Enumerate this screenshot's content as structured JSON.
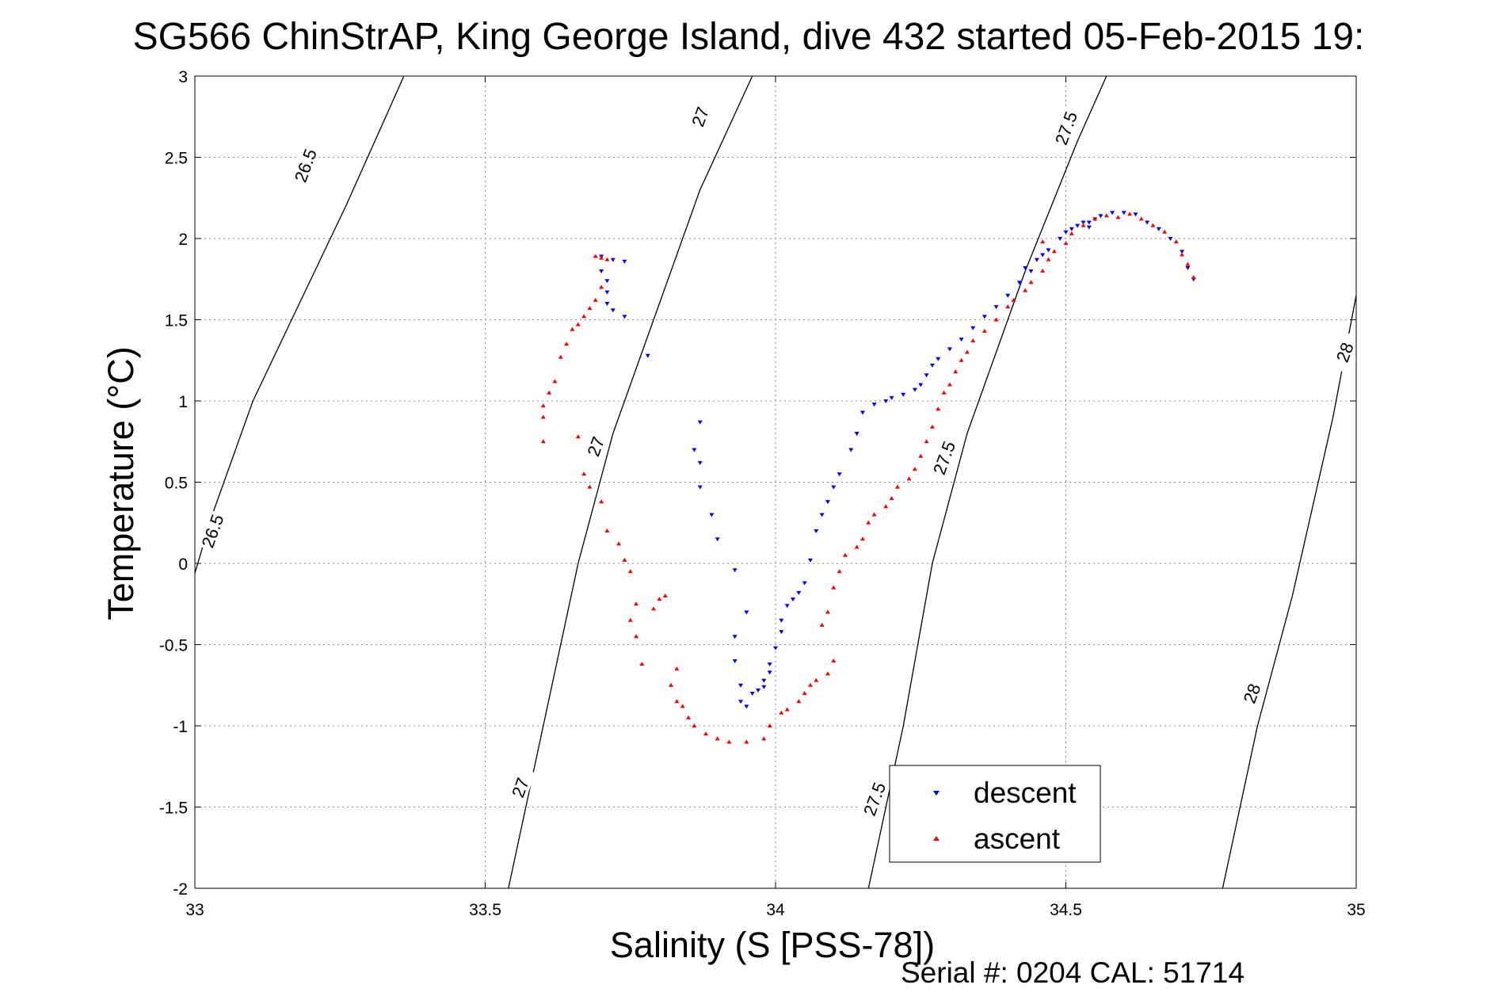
{
  "chart_data": {
    "type": "scatter",
    "title": "SG566 ChinStrAP, King George Island, dive 432 started 05-Feb-2015 19:",
    "xlabel": "Salinity (S [PSS-78])",
    "ylabel": "Temperature (°C)",
    "xlim": [
      33,
      35
    ],
    "ylim": [
      -2,
      3
    ],
    "x_ticks": [
      "33",
      "33.5",
      "34",
      "34.5",
      "35"
    ],
    "y_ticks": [
      "-2",
      "-1.5",
      "-1",
      "-0.5",
      "0",
      "0.5",
      "1",
      "1.5",
      "2",
      "2.5",
      "3"
    ],
    "grid": true,
    "legend": {
      "placement": "bottom-right"
    },
    "density_contours": [
      {
        "label": "26.5",
        "points": [
          [
            32.99,
            -0.18
          ],
          [
            33.03,
            0.3
          ],
          [
            33.1,
            1.0
          ],
          [
            33.18,
            1.6
          ],
          [
            33.26,
            2.2
          ],
          [
            33.36,
            3.0
          ]
        ]
      },
      {
        "label": "27",
        "points": [
          [
            33.54,
            -2.0
          ],
          [
            33.6,
            -1.0
          ],
          [
            33.66,
            0.0
          ],
          [
            33.72,
            0.8
          ],
          [
            33.8,
            1.6
          ],
          [
            33.87,
            2.3
          ],
          [
            33.96,
            3.0
          ]
        ]
      },
      {
        "label": "27.5",
        "points": [
          [
            34.16,
            -2.0
          ],
          [
            34.22,
            -1.0
          ],
          [
            34.27,
            0.0
          ],
          [
            34.33,
            0.8
          ],
          [
            34.43,
            1.8
          ],
          [
            34.52,
            2.6
          ],
          [
            34.57,
            3.0
          ]
        ]
      },
      {
        "label": "28",
        "points": [
          [
            34.77,
            -2.0
          ],
          [
            34.83,
            -1.0
          ],
          [
            34.89,
            -0.2
          ],
          [
            34.96,
            0.9
          ],
          [
            35.0,
            1.65
          ]
        ]
      }
    ],
    "contour_label_marks": [
      {
        "text": "26.5",
        "x": 33.19,
        "y": 2.45
      },
      {
        "text": "26.5",
        "x": 33.03,
        "y": 0.2
      },
      {
        "text": "27",
        "x": 33.87,
        "y": 2.75
      },
      {
        "text": "27",
        "x": 33.69,
        "y": 0.72
      },
      {
        "text": "27",
        "x": 33.56,
        "y": -1.38
      },
      {
        "text": "27.5",
        "x": 34.5,
        "y": 2.68
      },
      {
        "text": "27.5",
        "x": 34.29,
        "y": 0.65
      },
      {
        "text": "27.5",
        "x": 34.17,
        "y": -1.45
      },
      {
        "text": "28",
        "x": 34.98,
        "y": 1.3
      },
      {
        "text": "28",
        "x": 34.82,
        "y": -0.8
      }
    ],
    "series": [
      {
        "name": "descent",
        "color": "#0000ff",
        "marker": "triangle-down",
        "points": [
          [
            33.7,
            1.89
          ],
          [
            33.72,
            1.87
          ],
          [
            33.74,
            1.86
          ],
          [
            33.7,
            1.8
          ],
          [
            33.71,
            1.74
          ],
          [
            33.71,
            1.67
          ],
          [
            33.71,
            1.6
          ],
          [
            33.72,
            1.56
          ],
          [
            33.74,
            1.52
          ],
          [
            33.78,
            1.28
          ],
          [
            33.87,
            0.87
          ],
          [
            33.86,
            0.7
          ],
          [
            33.87,
            0.62
          ],
          [
            33.87,
            0.47
          ],
          [
            33.89,
            0.3
          ],
          [
            33.9,
            0.15
          ],
          [
            33.93,
            -0.04
          ],
          [
            33.95,
            -0.3
          ],
          [
            33.93,
            -0.45
          ],
          [
            33.93,
            -0.6
          ],
          [
            33.94,
            -0.75
          ],
          [
            33.94,
            -0.85
          ],
          [
            33.95,
            -0.88
          ],
          [
            33.96,
            -0.8
          ],
          [
            33.97,
            -0.78
          ],
          [
            33.98,
            -0.76
          ],
          [
            33.98,
            -0.72
          ],
          [
            33.99,
            -0.67
          ],
          [
            33.99,
            -0.62
          ],
          [
            34,
            -0.52
          ],
          [
            34.01,
            -0.42
          ],
          [
            34.01,
            -0.35
          ],
          [
            34.02,
            -0.26
          ],
          [
            34.03,
            -0.22
          ],
          [
            34.04,
            -0.18
          ],
          [
            34.05,
            -0.12
          ],
          [
            34.06,
            0.02
          ],
          [
            34.07,
            0.2
          ],
          [
            34.08,
            0.3
          ],
          [
            34.09,
            0.38
          ],
          [
            34.1,
            0.47
          ],
          [
            34.11,
            0.55
          ],
          [
            34.13,
            0.7
          ],
          [
            34.14,
            0.8
          ],
          [
            34.15,
            0.93
          ],
          [
            34.17,
            0.98
          ],
          [
            34.19,
            1.0
          ],
          [
            34.2,
            1.02
          ],
          [
            34.22,
            1.04
          ],
          [
            34.24,
            1.07
          ],
          [
            34.25,
            1.1
          ],
          [
            34.26,
            1.16
          ],
          [
            34.27,
            1.22
          ],
          [
            34.28,
            1.26
          ],
          [
            34.3,
            1.32
          ],
          [
            34.32,
            1.38
          ],
          [
            34.34,
            1.45
          ],
          [
            34.36,
            1.52
          ],
          [
            34.38,
            1.58
          ],
          [
            34.4,
            1.65
          ],
          [
            34.42,
            1.73
          ],
          [
            34.44,
            1.8
          ],
          [
            34.45,
            1.87
          ],
          [
            34.47,
            1.93
          ],
          [
            34.49,
            2.0
          ],
          [
            34.5,
            2.04
          ],
          [
            34.51,
            2.06
          ],
          [
            34.52,
            2.08
          ],
          [
            34.54,
            2.1
          ],
          [
            34.55,
            2.12
          ],
          [
            34.56,
            2.14
          ],
          [
            34.58,
            2.16
          ],
          [
            34.6,
            2.16
          ],
          [
            34.62,
            2.15
          ],
          [
            34.64,
            2.1
          ],
          [
            34.66,
            2.06
          ],
          [
            34.68,
            2.0
          ],
          [
            34.7,
            1.92
          ],
          [
            34.71,
            1.82
          ],
          [
            34.72,
            1.75
          ],
          [
            34.53,
            2.1
          ],
          [
            34.54,
            2.07
          ],
          [
            34.43,
            1.82
          ],
          [
            34.46,
            1.9
          ]
        ]
      },
      {
        "name": "ascent",
        "color": "#ff0000",
        "marker": "triangle-up",
        "points": [
          [
            33.69,
            1.89
          ],
          [
            33.7,
            1.88
          ],
          [
            33.71,
            1.87
          ],
          [
            33.7,
            1.7
          ],
          [
            33.69,
            1.62
          ],
          [
            33.68,
            1.57
          ],
          [
            33.67,
            1.52
          ],
          [
            33.66,
            1.47
          ],
          [
            33.65,
            1.44
          ],
          [
            33.64,
            1.35
          ],
          [
            33.63,
            1.27
          ],
          [
            33.62,
            1.12
          ],
          [
            33.61,
            1.05
          ],
          [
            33.6,
            0.97
          ],
          [
            33.6,
            0.9
          ],
          [
            33.6,
            0.75
          ],
          [
            33.66,
            0.78
          ],
          [
            33.67,
            0.55
          ],
          [
            33.68,
            0.47
          ],
          [
            33.7,
            0.38
          ],
          [
            33.71,
            0.2
          ],
          [
            33.73,
            0.12
          ],
          [
            33.74,
            0.02
          ],
          [
            33.75,
            -0.05
          ],
          [
            33.76,
            -0.25
          ],
          [
            33.75,
            -0.35
          ],
          [
            33.76,
            -0.45
          ],
          [
            33.77,
            -0.62
          ],
          [
            33.79,
            -0.28
          ],
          [
            33.8,
            -0.22
          ],
          [
            33.81,
            -0.2
          ],
          [
            33.82,
            -0.75
          ],
          [
            33.83,
            -0.65
          ],
          [
            33.83,
            -0.85
          ],
          [
            33.84,
            -0.88
          ],
          [
            33.85,
            -0.95
          ],
          [
            33.86,
            -1.0
          ],
          [
            33.88,
            -1.05
          ],
          [
            33.9,
            -1.08
          ],
          [
            33.92,
            -1.1
          ],
          [
            33.95,
            -1.1
          ],
          [
            33.98,
            -1.08
          ],
          [
            33.99,
            -1.0
          ],
          [
            34.01,
            -0.92
          ],
          [
            34.02,
            -0.9
          ],
          [
            34.04,
            -0.85
          ],
          [
            34.05,
            -0.8
          ],
          [
            34.06,
            -0.75
          ],
          [
            34.07,
            -0.72
          ],
          [
            34.09,
            -0.68
          ],
          [
            34.1,
            -0.6
          ],
          [
            34.08,
            -0.38
          ],
          [
            34.09,
            -0.3
          ],
          [
            34.1,
            -0.15
          ],
          [
            34.11,
            -0.05
          ],
          [
            34.12,
            0.05
          ],
          [
            34.14,
            0.1
          ],
          [
            34.15,
            0.15
          ],
          [
            34.16,
            0.25
          ],
          [
            34.17,
            0.3
          ],
          [
            34.19,
            0.35
          ],
          [
            34.2,
            0.4
          ],
          [
            34.21,
            0.47
          ],
          [
            34.23,
            0.52
          ],
          [
            34.24,
            0.58
          ],
          [
            34.25,
            0.66
          ],
          [
            34.26,
            0.75
          ],
          [
            34.27,
            0.84
          ],
          [
            34.28,
            0.95
          ],
          [
            34.29,
            1.05
          ],
          [
            34.3,
            1.1
          ],
          [
            34.31,
            1.18
          ],
          [
            34.32,
            1.25
          ],
          [
            34.33,
            1.3
          ],
          [
            34.34,
            1.37
          ],
          [
            34.36,
            1.43
          ],
          [
            34.38,
            1.5
          ],
          [
            34.4,
            1.58
          ],
          [
            34.41,
            1.62
          ],
          [
            34.43,
            1.68
          ],
          [
            34.44,
            1.73
          ],
          [
            34.46,
            1.8
          ],
          [
            34.47,
            1.87
          ],
          [
            34.46,
            1.98
          ],
          [
            34.48,
            1.92
          ],
          [
            34.5,
            1.97
          ],
          [
            34.51,
            2.03
          ],
          [
            34.53,
            2.08
          ],
          [
            34.55,
            2.12
          ],
          [
            34.57,
            2.14
          ],
          [
            34.59,
            2.13
          ],
          [
            34.61,
            2.15
          ],
          [
            34.63,
            2.12
          ],
          [
            34.65,
            2.08
          ],
          [
            34.67,
            2.04
          ],
          [
            34.69,
            1.98
          ],
          [
            34.7,
            1.9
          ],
          [
            34.71,
            1.84
          ],
          [
            34.72,
            1.76
          ]
        ]
      }
    ],
    "footer": "Serial #: 0204  CAL: 51714"
  }
}
